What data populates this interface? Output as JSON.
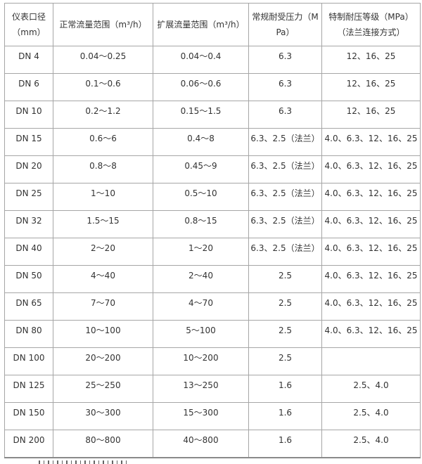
{
  "page": {
    "background_color": "#ffffff",
    "grid_border_color": "#a6a6a6",
    "outer_bottom_border_color": "#8a8a8a",
    "text_color": "#333333"
  },
  "table": {
    "col_keys": [
      "diameter",
      "normal-flow-range",
      "extended-flow-range",
      "standard-pressure",
      "special-pressure"
    ],
    "headers": [
      "仪表口径（mm）",
      "正常流量范围（m³/h）",
      "扩展流量范围（m³/h）",
      "常规耐受压力（MPa）",
      "特制耐压等级（MPa）（法兰连接方式）"
    ],
    "rows": [
      [
        "DN 4",
        "0.04～0.25",
        "0.04～0.4",
        "6.3",
        "12、16、25"
      ],
      [
        "DN 6",
        "0.1～0.6",
        "0.06～0.6",
        "6.3",
        "12、16、25"
      ],
      [
        "DN 10",
        "0.2～1.2",
        "0.15～1.5",
        "6.3",
        "12、16、25"
      ],
      [
        "DN 15",
        "0.6～6",
        "0.4～8",
        "6.3、2.5（法兰）",
        "4.0、6.3、12、16、25"
      ],
      [
        "DN 20",
        "0.8～8",
        "0.45～9",
        "6.3、2.5（法兰）",
        "4.0、6.3、12、16、25"
      ],
      [
        "DN 25",
        "1～10",
        "0.5～10",
        "6.3、2.5（法兰）",
        "4.0、6.3、12、16、25"
      ],
      [
        "DN 32",
        "1.5～15",
        "0.8～15",
        "6.3、2.5（法兰）",
        "4.0、6.3、12、16、25"
      ],
      [
        "DN 40",
        "2～20",
        "1～20",
        "6.3、2.5（法兰）",
        "4.0、6.3、12、16、25"
      ],
      [
        "DN 50",
        "4～40",
        "2～40",
        "2.5",
        "4.0、6.3、12、16、25"
      ],
      [
        "DN 65",
        "7～70",
        "4～70",
        "2.5",
        "4.0、6.3、12、16、25"
      ],
      [
        "DN 80",
        "10～100",
        "5～100",
        "2.5",
        "4.0、6.3、12、16、25"
      ],
      [
        "DN 100",
        "20～200",
        "10～200",
        "2.5",
        ""
      ],
      [
        "DN 125",
        "25～250",
        "13～250",
        "1.6",
        "2.5、4.0"
      ],
      [
        "DN 150",
        "30～300",
        "15～300",
        "1.6",
        "2.5、4.0"
      ],
      [
        "DN 200",
        "80～800",
        "40～800",
        "1.6",
        "2.5、4.0"
      ]
    ]
  }
}
